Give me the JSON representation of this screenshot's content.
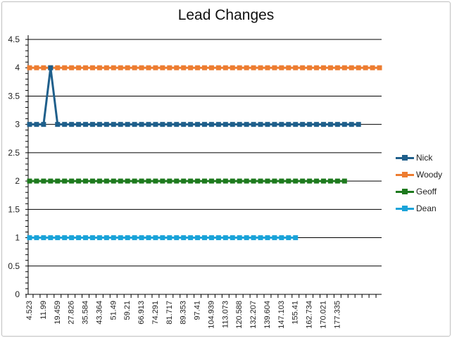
{
  "chart_data": {
    "type": "line",
    "title": "Lead Changes",
    "xlabel": "",
    "ylabel": "",
    "ylim": [
      0,
      4.5
    ],
    "ytick_step": 0.5,
    "grid": true,
    "legend_position": "right",
    "x_tick_labels": [
      "4.523",
      "11.99",
      "19.459",
      "27.826",
      "35.584",
      "43.364",
      "51.49",
      "59.21",
      "66.913",
      "74.291",
      "81.717",
      "89.353",
      "97.41",
      "104.939",
      "113.073",
      "120.588",
      "132.207",
      "139.604",
      "147.103",
      "155.41",
      "162.734",
      "170.021",
      "177.335"
    ],
    "series": [
      {
        "name": "Nick",
        "color": "#1f5f8b",
        "values": [
          3,
          3,
          3,
          4,
          3,
          3,
          3,
          3,
          3,
          3,
          3,
          3,
          3,
          3,
          3,
          3,
          3,
          3,
          3,
          3,
          3,
          3,
          3,
          3,
          3,
          3,
          3,
          3,
          3,
          3,
          3,
          3,
          3,
          3,
          3,
          3,
          3,
          3,
          3,
          3,
          3,
          3,
          3,
          3,
          3,
          3,
          3,
          3
        ]
      },
      {
        "name": "Woody",
        "color": "#ed7d31",
        "values": [
          4,
          4,
          4,
          4,
          4,
          4,
          4,
          4,
          4,
          4,
          4,
          4,
          4,
          4,
          4,
          4,
          4,
          4,
          4,
          4,
          4,
          4,
          4,
          4,
          4,
          4,
          4,
          4,
          4,
          4,
          4,
          4,
          4,
          4,
          4,
          4,
          4,
          4,
          4,
          4,
          4,
          4,
          4,
          4,
          4,
          4,
          4,
          4,
          4,
          4,
          4
        ]
      },
      {
        "name": "Geoff",
        "color": "#1e7a1e",
        "values": [
          2,
          2,
          2,
          2,
          2,
          2,
          2,
          2,
          2,
          2,
          2,
          2,
          2,
          2,
          2,
          2,
          2,
          2,
          2,
          2,
          2,
          2,
          2,
          2,
          2,
          2,
          2,
          2,
          2,
          2,
          2,
          2,
          2,
          2,
          2,
          2,
          2,
          2,
          2,
          2,
          2,
          2,
          2,
          2,
          2,
          2
        ]
      },
      {
        "name": "Dean",
        "color": "#1aa3d9",
        "values": [
          1,
          1,
          1,
          1,
          1,
          1,
          1,
          1,
          1,
          1,
          1,
          1,
          1,
          1,
          1,
          1,
          1,
          1,
          1,
          1,
          1,
          1,
          1,
          1,
          1,
          1,
          1,
          1,
          1,
          1,
          1,
          1,
          1,
          1,
          1,
          1,
          1,
          1,
          1
        ]
      }
    ]
  }
}
